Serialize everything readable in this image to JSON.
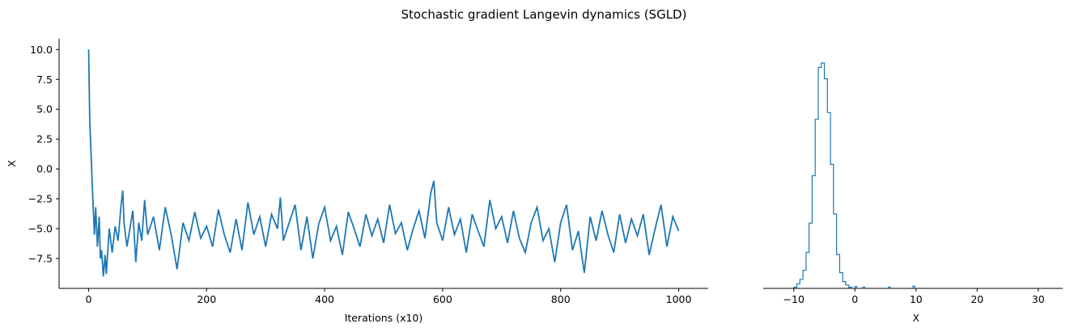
{
  "figure": {
    "title": "Stochastic gradient Langevin dynamics (SGLD)",
    "line_color": "#1f77b4"
  },
  "chart_data": [
    {
      "type": "line",
      "xlabel": "Iterations (x10)",
      "ylabel": "X",
      "xlim": [
        -50,
        1050
      ],
      "ylim": [
        -10.0,
        10.9
      ],
      "x_ticks": [
        0,
        200,
        400,
        600,
        800,
        1000
      ],
      "y_ticks": [
        -7.5,
        -5.0,
        -2.5,
        0.0,
        2.5,
        5.0,
        7.5,
        10.0
      ],
      "x_tick_labels": [
        "0",
        "200",
        "400",
        "600",
        "800",
        "1000"
      ],
      "y_tick_labels": [
        "−7.5",
        "−5.0",
        "−2.5",
        "0.0",
        "2.5",
        "5.0",
        "7.5",
        "10.0"
      ],
      "grid": false,
      "series": [
        {
          "x": [
            0,
            2,
            4,
            6,
            8,
            10,
            12,
            15,
            18,
            20,
            22,
            25,
            28,
            30,
            35,
            40,
            45,
            50,
            55,
            58,
            60,
            65,
            70,
            75,
            80,
            85,
            90,
            95,
            100,
            110,
            120,
            130,
            140,
            150,
            160,
            170,
            180,
            190,
            200,
            210,
            220,
            230,
            240,
            250,
            260,
            270,
            280,
            290,
            300,
            310,
            320,
            325,
            330,
            340,
            350,
            360,
            370,
            380,
            390,
            400,
            410,
            420,
            430,
            440,
            450,
            460,
            470,
            480,
            490,
            500,
            510,
            520,
            530,
            540,
            550,
            560,
            570,
            580,
            585,
            590,
            600,
            610,
            620,
            630,
            640,
            650,
            660,
            670,
            680,
            690,
            700,
            710,
            720,
            730,
            740,
            750,
            760,
            770,
            780,
            790,
            800,
            810,
            820,
            830,
            840,
            850,
            860,
            870,
            880,
            890,
            900,
            910,
            920,
            930,
            940,
            950,
            960,
            970,
            980,
            990,
            1000
          ],
          "y": [
            10.0,
            4.0,
            1.5,
            -1.0,
            -3.5,
            -5.5,
            -3.2,
            -6.5,
            -4.0,
            -7.5,
            -6.8,
            -9.0,
            -7.2,
            -8.8,
            -5.0,
            -7.0,
            -4.8,
            -6.0,
            -3.0,
            -1.8,
            -4.5,
            -6.5,
            -5.0,
            -3.5,
            -7.8,
            -4.5,
            -6.0,
            -2.6,
            -5.5,
            -4.0,
            -6.8,
            -3.2,
            -5.5,
            -8.4,
            -4.5,
            -6.0,
            -3.6,
            -5.8,
            -4.8,
            -6.5,
            -3.4,
            -5.5,
            -7.0,
            -4.2,
            -6.8,
            -2.8,
            -5.5,
            -4.0,
            -6.5,
            -3.8,
            -5.0,
            -2.4,
            -6.0,
            -4.5,
            -3.0,
            -6.8,
            -4.0,
            -7.5,
            -4.6,
            -3.2,
            -6.0,
            -4.8,
            -7.2,
            -3.6,
            -5.0,
            -6.5,
            -3.8,
            -5.6,
            -4.2,
            -6.2,
            -3.0,
            -5.4,
            -4.5,
            -6.8,
            -5.0,
            -3.5,
            -5.8,
            -2.0,
            -1.0,
            -4.5,
            -6.0,
            -3.2,
            -5.5,
            -4.2,
            -7.0,
            -3.8,
            -5.2,
            -6.5,
            -2.6,
            -5.0,
            -4.0,
            -6.2,
            -3.5,
            -5.8,
            -7.0,
            -4.5,
            -3.2,
            -6.0,
            -5.0,
            -7.8,
            -4.5,
            -3.0,
            -6.8,
            -5.2,
            -8.7,
            -4.0,
            -6.0,
            -3.5,
            -5.5,
            -7.0,
            -3.8,
            -6.2,
            -4.2,
            -5.6,
            -3.8,
            -7.2,
            -5.0,
            -3.0,
            -6.5,
            -4.0,
            -5.2
          ]
        }
      ]
    },
    {
      "type": "histogram",
      "xlabel": "X",
      "ylabel": "",
      "xlim": [
        -15,
        34
      ],
      "ylim": [
        0,
        1.05
      ],
      "x_ticks": [
        -10,
        0,
        10,
        20,
        30
      ],
      "x_tick_labels": [
        "−10",
        "0",
        "10",
        "20",
        "30"
      ],
      "grid": false,
      "bin_edges": [
        -10,
        -9.5,
        -9,
        -8.5,
        -8,
        -7.5,
        -7,
        -6.5,
        -6,
        -5.5,
        -5,
        -4.5,
        -4,
        -3.5,
        -3,
        -2.5,
        -2,
        -1.5,
        -1,
        -0.5
      ],
      "counts": [
        0.005,
        0.02,
        0.04,
        0.08,
        0.16,
        0.29,
        0.5,
        0.75,
        0.98,
        1.0,
        0.93,
        0.78,
        0.55,
        0.33,
        0.15,
        0.07,
        0.03,
        0.015,
        0.005
      ],
      "sparse_bins": [
        {
          "left": 0.0,
          "right": 0.3,
          "count": 0.008
        },
        {
          "left": 1.3,
          "right": 1.6,
          "count": 0.006
        },
        {
          "left": 5.5,
          "right": 5.8,
          "count": 0.006
        },
        {
          "left": 9.5,
          "right": 9.8,
          "count": 0.01
        }
      ]
    }
  ]
}
